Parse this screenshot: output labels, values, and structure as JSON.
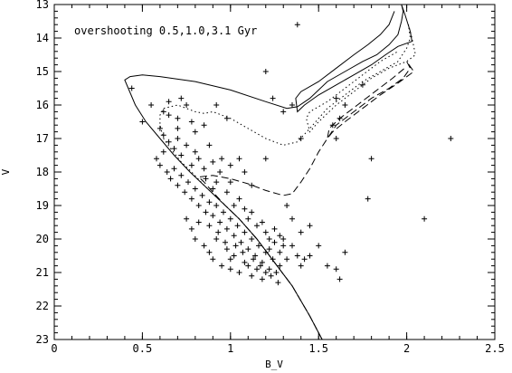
{
  "chart_data": {
    "type": "scatter",
    "title": "",
    "annotation": "overshooting 0.5,1.0,3.1 Gyr",
    "xlabel": "B_V",
    "ylabel": "V",
    "xlim": [
      0,
      2.5
    ],
    "ylim": [
      23,
      13
    ],
    "y_inverted": true,
    "grid": false,
    "x_ticks": [
      "0",
      "0.5",
      "1",
      "1.5",
      "2",
      "2.5"
    ],
    "y_ticks": [
      "13",
      "14",
      "15",
      "16",
      "17",
      "18",
      "19",
      "20",
      "21",
      "22",
      "23"
    ],
    "isochrones": [
      {
        "age_label": "0.5",
        "style": "solid",
        "points": [
          [
            1.52,
            23.0
          ],
          [
            1.45,
            22.3
          ],
          [
            1.35,
            21.4
          ],
          [
            1.25,
            20.7
          ],
          [
            1.15,
            20.0
          ],
          [
            1.05,
            19.4
          ],
          [
            0.95,
            18.9
          ],
          [
            0.85,
            18.4
          ],
          [
            0.77,
            18.0
          ],
          [
            0.68,
            17.5
          ],
          [
            0.6,
            17.0
          ],
          [
            0.52,
            16.5
          ],
          [
            0.46,
            16.0
          ],
          [
            0.42,
            15.5
          ],
          [
            0.4,
            15.25
          ],
          [
            0.43,
            15.15
          ],
          [
            0.5,
            15.1
          ],
          [
            0.6,
            15.15
          ],
          [
            0.8,
            15.3
          ],
          [
            1.0,
            15.55
          ],
          [
            1.2,
            15.9
          ],
          [
            1.32,
            16.1
          ],
          [
            1.38,
            16.05
          ],
          [
            1.45,
            15.8
          ],
          [
            1.55,
            15.3
          ],
          [
            1.65,
            15.0
          ],
          [
            1.75,
            14.7
          ],
          [
            1.83,
            14.5
          ],
          [
            1.9,
            14.2
          ],
          [
            1.95,
            13.9
          ],
          [
            1.97,
            13.5
          ],
          [
            1.98,
            13.2
          ],
          [
            1.97,
            13.0
          ],
          [
            1.99,
            13.3
          ],
          [
            2.02,
            13.8
          ],
          [
            2.03,
            14.1
          ],
          [
            1.95,
            14.25
          ],
          [
            1.88,
            14.5
          ],
          [
            1.8,
            14.8
          ],
          [
            1.7,
            15.1
          ],
          [
            1.6,
            15.4
          ],
          [
            1.5,
            15.7
          ],
          [
            1.42,
            16.0
          ],
          [
            1.38,
            16.2
          ],
          [
            1.37,
            15.8
          ],
          [
            1.4,
            15.6
          ],
          [
            1.5,
            15.3
          ],
          [
            1.6,
            14.9
          ],
          [
            1.7,
            14.5
          ],
          [
            1.78,
            14.2
          ],
          [
            1.85,
            13.9
          ],
          [
            1.9,
            13.6
          ],
          [
            1.93,
            13.2
          ]
        ]
      },
      {
        "age_label": "1.0",
        "style": "dotted",
        "points": [
          [
            1.52,
            23.0
          ],
          [
            1.45,
            22.3
          ],
          [
            1.35,
            21.4
          ],
          [
            1.25,
            20.7
          ],
          [
            1.15,
            20.0
          ],
          [
            1.05,
            19.4
          ],
          [
            0.95,
            18.9
          ],
          [
            0.85,
            18.4
          ],
          [
            0.78,
            18.0
          ],
          [
            0.72,
            17.7
          ],
          [
            0.66,
            17.3
          ],
          [
            0.62,
            17.0
          ],
          [
            0.6,
            16.6
          ],
          [
            0.6,
            16.3
          ],
          [
            0.62,
            16.1
          ],
          [
            0.7,
            16.0
          ],
          [
            0.8,
            16.2
          ],
          [
            0.85,
            16.25
          ],
          [
            0.9,
            16.2
          ],
          [
            1.0,
            16.4
          ],
          [
            1.1,
            16.7
          ],
          [
            1.2,
            17.0
          ],
          [
            1.3,
            17.2
          ],
          [
            1.38,
            17.1
          ],
          [
            1.45,
            16.7
          ],
          [
            1.55,
            16.1
          ],
          [
            1.65,
            15.7
          ],
          [
            1.75,
            15.3
          ],
          [
            1.85,
            15.0
          ],
          [
            1.95,
            14.7
          ],
          [
            2.0,
            14.3
          ],
          [
            2.02,
            14.0
          ],
          [
            2.01,
            13.6
          ],
          [
            2.03,
            14.0
          ],
          [
            2.05,
            14.5
          ],
          [
            2.0,
            14.7
          ],
          [
            1.9,
            14.9
          ],
          [
            1.8,
            15.2
          ],
          [
            1.7,
            15.6
          ],
          [
            1.6,
            16.0
          ],
          [
            1.5,
            16.5
          ],
          [
            1.45,
            16.8
          ],
          [
            1.43,
            16.4
          ],
          [
            1.45,
            16.2
          ],
          [
            1.55,
            15.9
          ],
          [
            1.65,
            15.5
          ],
          [
            1.75,
            15.1
          ],
          [
            1.85,
            14.7
          ],
          [
            1.95,
            14.4
          ]
        ]
      },
      {
        "age_label": "3.1",
        "style": "dashed",
        "points": [
          [
            1.52,
            23.0
          ],
          [
            1.45,
            22.3
          ],
          [
            1.35,
            21.4
          ],
          [
            1.25,
            20.7
          ],
          [
            1.15,
            20.0
          ],
          [
            1.05,
            19.4
          ],
          [
            0.97,
            19.0
          ],
          [
            0.9,
            18.6
          ],
          [
            0.85,
            18.3
          ],
          [
            0.82,
            18.15
          ],
          [
            0.9,
            18.1
          ],
          [
            1.0,
            18.2
          ],
          [
            1.1,
            18.35
          ],
          [
            1.2,
            18.55
          ],
          [
            1.3,
            18.7
          ],
          [
            1.35,
            18.65
          ],
          [
            1.4,
            18.3
          ],
          [
            1.45,
            17.9
          ],
          [
            1.5,
            17.4
          ],
          [
            1.55,
            17.0
          ],
          [
            1.6,
            16.6
          ],
          [
            1.7,
            16.2
          ],
          [
            1.8,
            15.8
          ],
          [
            1.9,
            15.5
          ],
          [
            1.98,
            15.2
          ],
          [
            2.02,
            14.9
          ],
          [
            2.0,
            14.7
          ],
          [
            2.04,
            15.0
          ],
          [
            1.95,
            15.35
          ],
          [
            1.85,
            15.7
          ],
          [
            1.75,
            16.1
          ],
          [
            1.65,
            16.5
          ],
          [
            1.58,
            16.8
          ],
          [
            1.55,
            17.0
          ],
          [
            1.56,
            16.7
          ],
          [
            1.62,
            16.4
          ],
          [
            1.72,
            16.0
          ],
          [
            1.82,
            15.6
          ],
          [
            1.92,
            15.2
          ],
          [
            2.0,
            14.85
          ]
        ]
      }
    ],
    "stars": [
      [
        0.44,
        15.5
      ],
      [
        0.5,
        16.5
      ],
      [
        0.6,
        16.7
      ],
      [
        0.62,
        16.2
      ],
      [
        0.65,
        16.3
      ],
      [
        0.7,
        16.4
      ],
      [
        0.7,
        16.7
      ],
      [
        0.72,
        15.8
      ],
      [
        0.75,
        16.0
      ],
      [
        0.78,
        16.5
      ],
      [
        0.8,
        16.8
      ],
      [
        0.85,
        16.6
      ],
      [
        0.92,
        16.0
      ],
      [
        0.62,
        16.9
      ],
      [
        0.65,
        17.1
      ],
      [
        0.68,
        17.3
      ],
      [
        0.7,
        17.0
      ],
      [
        0.72,
        17.5
      ],
      [
        0.75,
        17.2
      ],
      [
        0.78,
        17.8
      ],
      [
        0.8,
        17.4
      ],
      [
        0.82,
        17.6
      ],
      [
        0.85,
        17.9
      ],
      [
        0.88,
        17.2
      ],
      [
        0.9,
        17.7
      ],
      [
        0.58,
        17.6
      ],
      [
        0.6,
        17.8
      ],
      [
        0.62,
        17.4
      ],
      [
        0.64,
        18.0
      ],
      [
        0.66,
        18.2
      ],
      [
        0.68,
        17.9
      ],
      [
        0.7,
        18.4
      ],
      [
        0.72,
        18.1
      ],
      [
        0.74,
        18.6
      ],
      [
        0.76,
        18.3
      ],
      [
        0.78,
        18.8
      ],
      [
        0.8,
        18.5
      ],
      [
        0.82,
        19.0
      ],
      [
        0.84,
        18.7
      ],
      [
        0.86,
        19.2
      ],
      [
        0.88,
        18.9
      ],
      [
        0.9,
        19.3
      ],
      [
        0.92,
        19.0
      ],
      [
        0.94,
        19.5
      ],
      [
        0.96,
        19.2
      ],
      [
        0.98,
        19.7
      ],
      [
        1.0,
        19.4
      ],
      [
        1.02,
        19.9
      ],
      [
        1.04,
        19.6
      ],
      [
        1.06,
        20.1
      ],
      [
        1.08,
        19.8
      ],
      [
        1.1,
        20.3
      ],
      [
        1.12,
        20.0
      ],
      [
        1.14,
        20.5
      ],
      [
        1.16,
        20.2
      ],
      [
        1.18,
        20.7
      ],
      [
        1.2,
        20.4
      ],
      [
        1.22,
        20.9
      ],
      [
        1.24,
        20.6
      ],
      [
        1.26,
        21.0
      ],
      [
        1.28,
        20.8
      ],
      [
        0.75,
        19.4
      ],
      [
        0.78,
        19.7
      ],
      [
        0.8,
        20.0
      ],
      [
        0.82,
        19.5
      ],
      [
        0.85,
        20.2
      ],
      [
        0.88,
        20.4
      ],
      [
        0.9,
        20.6
      ],
      [
        0.92,
        20.0
      ],
      [
        0.95,
        20.8
      ],
      [
        0.98,
        20.3
      ],
      [
        1.0,
        20.9
      ],
      [
        1.02,
        20.5
      ],
      [
        1.05,
        21.0
      ],
      [
        1.08,
        20.7
      ],
      [
        1.1,
        20.8
      ],
      [
        1.12,
        21.1
      ],
      [
        1.15,
        20.9
      ],
      [
        1.18,
        21.2
      ],
      [
        1.2,
        21.0
      ],
      [
        1.22,
        20.3
      ],
      [
        1.25,
        20.1
      ],
      [
        1.28,
        20.4
      ],
      [
        1.3,
        20.0
      ],
      [
        1.32,
        20.6
      ],
      [
        1.35,
        20.2
      ],
      [
        1.38,
        20.5
      ],
      [
        1.4,
        20.8
      ],
      [
        1.42,
        20.6
      ],
      [
        0.86,
        18.2
      ],
      [
        0.9,
        18.5
      ],
      [
        0.94,
        18.0
      ],
      [
        0.98,
        18.6
      ],
      [
        1.0,
        18.3
      ],
      [
        1.02,
        19.0
      ],
      [
        1.05,
        18.8
      ],
      [
        1.08,
        19.1
      ],
      [
        1.1,
        19.4
      ],
      [
        1.12,
        19.2
      ],
      [
        1.15,
        19.6
      ],
      [
        1.18,
        19.5
      ],
      [
        1.2,
        19.8
      ],
      [
        1.22,
        20.0
      ],
      [
        1.25,
        19.7
      ],
      [
        1.28,
        19.9
      ],
      [
        1.3,
        20.2
      ],
      [
        1.05,
        17.6
      ],
      [
        1.08,
        18.0
      ],
      [
        1.12,
        18.4
      ],
      [
        1.0,
        17.8
      ],
      [
        0.95,
        17.6
      ],
      [
        0.92,
        18.3
      ],
      [
        1.2,
        17.6
      ],
      [
        1.2,
        15.0
      ],
      [
        1.24,
        15.8
      ],
      [
        1.3,
        16.2
      ],
      [
        1.35,
        16.0
      ],
      [
        1.4,
        17.0
      ],
      [
        1.45,
        19.6
      ],
      [
        1.6,
        15.8
      ],
      [
        1.62,
        16.4
      ],
      [
        1.65,
        16.0
      ],
      [
        1.55,
        20.8
      ],
      [
        1.6,
        20.9
      ],
      [
        1.62,
        21.2
      ],
      [
        1.65,
        20.4
      ],
      [
        1.78,
        18.8
      ],
      [
        1.8,
        17.6
      ],
      [
        1.75,
        15.4
      ],
      [
        1.38,
        13.6
      ],
      [
        2.1,
        19.4
      ],
      [
        2.25,
        17.0
      ],
      [
        1.32,
        19.0
      ],
      [
        1.35,
        19.4
      ],
      [
        1.4,
        19.8
      ],
      [
        1.5,
        20.2
      ],
      [
        1.45,
        20.5
      ],
      [
        1.6,
        17.0
      ],
      [
        1.58,
        16.6
      ],
      [
        0.98,
        16.4
      ],
      [
        0.55,
        16.0
      ],
      [
        0.65,
        15.9
      ],
      [
        0.88,
        19.6
      ],
      [
        0.93,
        19.8
      ],
      [
        0.97,
        20.1
      ],
      [
        1.0,
        20.6
      ],
      [
        1.03,
        20.2
      ],
      [
        1.07,
        20.4
      ],
      [
        1.13,
        20.6
      ],
      [
        1.17,
        20.8
      ],
      [
        1.23,
        21.1
      ],
      [
        1.27,
        21.3
      ]
    ]
  }
}
